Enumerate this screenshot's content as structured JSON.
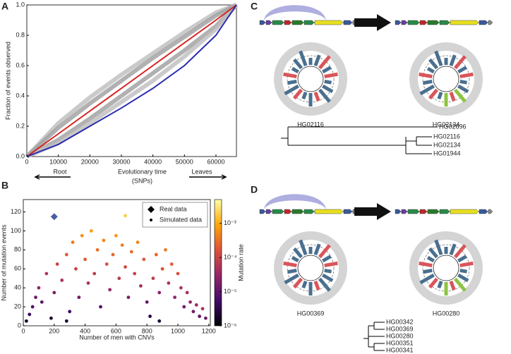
{
  "chart_data": [
    {
      "type": "line",
      "panel": "A",
      "ylabel": "Fraction of events observed",
      "xlabel": [
        "Evolutionary time",
        "(SNPs)"
      ],
      "annotations": [
        "Root",
        "Leaves"
      ],
      "x": [
        0,
        10000,
        20000,
        30000,
        40000,
        50000,
        60000,
        66500
      ],
      "series": [
        {
          "color": "#bdbdbd",
          "values": [
            0,
            0.22,
            0.39,
            0.54,
            0.68,
            0.82,
            0.95,
            1.0
          ]
        },
        {
          "color": "#9e9e9e",
          "values": [
            0,
            0.19,
            0.35,
            0.5,
            0.65,
            0.79,
            0.93,
            1.0
          ]
        },
        {
          "color": "#9e9e9e",
          "values": [
            0,
            0.11,
            0.25,
            0.4,
            0.55,
            0.7,
            0.86,
            1.0
          ]
        },
        {
          "color": "#bdbdbd",
          "values": [
            0,
            0.09,
            0.22,
            0.36,
            0.5,
            0.66,
            0.84,
            1.0
          ]
        },
        {
          "color": "#d62020",
          "values": [
            0,
            0.15,
            0.3,
            0.45,
            0.6,
            0.75,
            0.9,
            1.0
          ]
        },
        {
          "color": "#2b2bb0",
          "values": [
            0,
            0.08,
            0.2,
            0.32,
            0.45,
            0.6,
            0.8,
            1.0
          ]
        }
      ],
      "xlim": [
        0,
        66500
      ],
      "ylim": [
        0,
        1
      ],
      "xticks": [
        0,
        10000,
        20000,
        30000,
        40000,
        50000,
        60000
      ],
      "yticks": [
        {
          "value": 0,
          "label": "0.0"
        },
        {
          "value": 0.2,
          "label": "0.2"
        },
        {
          "value": 0.4,
          "label": "0.4"
        },
        {
          "value": 0.6,
          "label": "0.6"
        },
        {
          "value": 0.8,
          "label": "0.8"
        },
        {
          "value": 1,
          "label": "1.0"
        }
      ]
    },
    {
      "type": "scatter",
      "panel": "B",
      "ylabel": "Number of mutation events",
      "xlabel": "Number of men with CNVs",
      "colorbar_label": "Mutation rate",
      "legend": "upper right",
      "colormap": [
        "#000004",
        "#420a68",
        "#932667",
        "#dd513a",
        "#fca50a",
        "#fcffa4"
      ],
      "clim": [
        1e-06,
        0.005
      ],
      "log_color": true,
      "cticks": [
        {
          "value": 1e-06,
          "label": "10⁻⁶"
        },
        {
          "value": 1e-05,
          "label": "10⁻⁵"
        },
        {
          "value": 0.0001,
          "label": "10⁻⁴"
        },
        {
          "value": 0.001,
          "label": "10⁻³"
        }
      ],
      "series": [
        {
          "name": "Real data",
          "color": "#4a5fa0",
          "x": [
            200
          ],
          "values": [
            115
          ]
        },
        {
          "name": "Simulated data",
          "color": "#000000",
          "x": [
            20,
            40,
            60,
            80,
            100,
            120,
            150,
            180,
            200,
            220,
            250,
            280,
            300,
            320,
            340,
            360,
            380,
            400,
            420,
            440,
            460,
            480,
            500,
            520,
            540,
            560,
            580,
            600,
            620,
            640,
            660,
            680,
            700,
            720,
            740,
            760,
            780,
            800,
            820,
            840,
            860,
            880,
            900,
            920,
            940,
            960,
            980,
            1000,
            1020,
            1040,
            1060,
            1080,
            1100,
            1120,
            1140,
            1160,
            1180,
            660,
            280,
            880
          ],
          "values": [
            5,
            12,
            20,
            30,
            40,
            25,
            55,
            8,
            35,
            65,
            48,
            75,
            15,
            88,
            60,
            30,
            95,
            70,
            45,
            100,
            55,
            80,
            20,
            90,
            65,
            38,
            75,
            95,
            50,
            85,
            62,
            30,
            78,
            55,
            88,
            42,
            70,
            25,
            10,
            50,
            75,
            35,
            60,
            80,
            45,
            65,
            30,
            55,
            40,
            20,
            35,
            25,
            15,
            22,
            10,
            18,
            8,
            116,
            5,
            5
          ],
          "rate": [
            2e-06,
            4e-06,
            8e-06,
            1.5e-05,
            3e-05,
            1e-05,
            6e-05,
            2e-06,
            2e-05,
            0.0001,
            5e-05,
            0.0002,
            5e-06,
            0.0004,
            0.0001,
            1.5e-05,
            0.0006,
            0.0002,
            5e-05,
            0.0008,
            8e-05,
            0.0003,
            8e-06,
            0.0005,
            0.00015,
            3e-05,
            0.00025,
            0.0007,
            7e-05,
            0.0004,
            0.00012,
            2e-05,
            0.0003,
            9e-05,
            0.0005,
            4e-05,
            0.0002,
            1.2e-05,
            3e-06,
            8e-05,
            0.00025,
            2.5e-05,
            0.00015,
            0.0004,
            6e-05,
            0.0002,
            3e-05,
            0.00015,
            6e-05,
            1.5e-05,
            5e-05,
            3e-05,
            1.5e-05,
            4e-05,
            1e-05,
            5e-05,
            1.5e-05,
            0.002,
            2e-06,
            2e-06
          ]
        }
      ],
      "xlim": [
        0,
        1210
      ],
      "ylim": [
        0,
        133
      ],
      "xticks": [
        0,
        200,
        400,
        600,
        800,
        1000,
        1200
      ],
      "yticks": [
        0,
        20,
        40,
        60,
        80,
        100,
        120
      ]
    }
  ],
  "panels": {
    "C": {
      "label": "C",
      "left_sample": {
        "text": "HG02116",
        "color": "#c0282d"
      },
      "right_sample": {
        "text": "HG02134",
        "color": "#2a7a2a"
      },
      "tree_leaves": [
        {
          "text": "HG02696",
          "color": "#2a7a2a"
        },
        {
          "text": "HG02116",
          "color": "#c0282d"
        },
        {
          "text": "HG02134",
          "color": "#2a7a2a"
        },
        {
          "text": "HG01944",
          "color": "#c0282d"
        }
      ]
    },
    "D": {
      "label": "D",
      "left_sample": {
        "text": "HG00369",
        "color": "#c0282d"
      },
      "right_sample": {
        "text": "HG00280",
        "color": "#2a7a2a"
      },
      "tree_leaves": [
        {
          "text": "HG00342",
          "color": "#c0282d"
        },
        {
          "text": "HG00369",
          "color": "#c0282d"
        },
        {
          "text": "HG00280",
          "color": "#2a7a2a"
        },
        {
          "text": "HG00351",
          "color": "#c0282d"
        },
        {
          "text": "HG00341",
          "color": "#c0282d"
        }
      ]
    }
  }
}
